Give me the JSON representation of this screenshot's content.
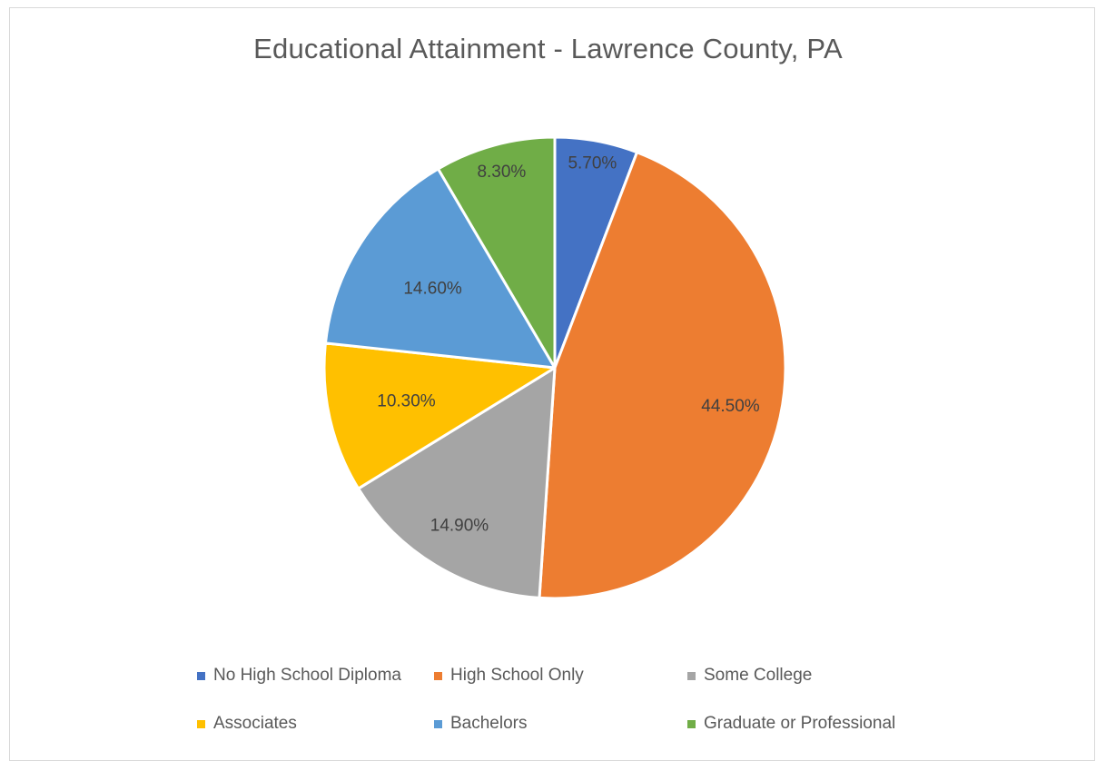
{
  "chart_data": {
    "type": "pie",
    "title": "Educational Attainment - Lawrence County, PA",
    "categories": [
      "No High School Diploma",
      "High School Only",
      "Some College",
      "Associates",
      "Bachelors",
      "Graduate or Professional"
    ],
    "values": [
      5.7,
      44.5,
      14.9,
      10.3,
      14.6,
      8.3
    ],
    "data_labels": [
      "5.70%",
      "44.50%",
      "14.90%",
      "10.30%",
      "14.60%",
      "8.30%"
    ],
    "colors": [
      "#4472c4",
      "#ed7d31",
      "#a5a5a5",
      "#ffc000",
      "#5b9bd5",
      "#70ad47"
    ],
    "legend_position": "bottom"
  }
}
